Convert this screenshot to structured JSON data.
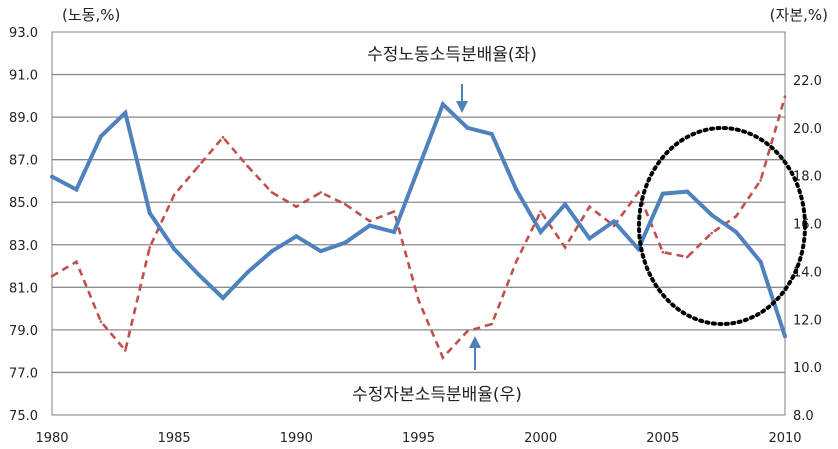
{
  "chart_data": {
    "type": "line",
    "left_axis_unit": "(노동,%)",
    "right_axis_unit": "(자본,%)",
    "left_ylim": [
      75.0,
      93.0
    ],
    "left_yticks": [
      "93.0",
      "91.0",
      "89.0",
      "87.0",
      "85.0",
      "83.0",
      "81.0",
      "79.0",
      "77.0",
      "75.0"
    ],
    "right_ylim": [
      8.0,
      24.0
    ],
    "right_yticks": [
      "22.0",
      "20.0",
      "18.0",
      "16.0",
      "14.0",
      "12.0",
      "10.0",
      "8.0"
    ],
    "x_range": [
      1980,
      2010
    ],
    "xticks": [
      "1980",
      "1985",
      "1990",
      "1995",
      "2000",
      "2005",
      "2010"
    ],
    "grid": "horizontal",
    "labor_share": {
      "label": "수정노동소득분배율(좌)",
      "axis": "left",
      "color": "#4f81bd",
      "x": [
        1980,
        1981,
        1982,
        1983,
        1984,
        1985,
        1986,
        1987,
        1988,
        1989,
        1990,
        1991,
        1992,
        1993,
        1994,
        1995,
        1996,
        1997,
        1998,
        1999,
        2000,
        2001,
        2002,
        2003,
        2004,
        2005,
        2006,
        2007,
        2008,
        2009,
        2010
      ],
      "y": [
        86.2,
        85.6,
        88.1,
        89.2,
        84.5,
        82.8,
        81.6,
        80.5,
        81.7,
        82.7,
        83.4,
        82.7,
        83.1,
        83.9,
        83.6,
        86.6,
        89.6,
        88.5,
        88.2,
        85.6,
        83.6,
        84.9,
        83.3,
        84.1,
        82.8,
        85.4,
        85.5,
        84.4,
        83.6,
        82.2,
        78.7
      ]
    },
    "capital_share": {
      "label": "수정자본소득분배율(우)",
      "axis": "right",
      "color": "#c0504d",
      "x": [
        1980,
        1981,
        1982,
        1983,
        1984,
        1985,
        1986,
        1987,
        1988,
        1989,
        1990,
        1991,
        1992,
        1993,
        1994,
        1995,
        1996,
        1997,
        1998,
        1999,
        2000,
        2001,
        2002,
        2003,
        2004,
        2005,
        2006,
        2007,
        2008,
        2009,
        2010
      ],
      "y": [
        13.8,
        14.4,
        11.9,
        10.7,
        15.0,
        17.2,
        18.4,
        19.6,
        18.4,
        17.3,
        16.7,
        17.3,
        16.8,
        16.1,
        16.5,
        12.8,
        10.4,
        11.5,
        11.8,
        14.4,
        16.5,
        15.0,
        16.7,
        15.9,
        17.3,
        14.8,
        14.6,
        15.6,
        16.3,
        17.8,
        21.3
      ]
    }
  }
}
